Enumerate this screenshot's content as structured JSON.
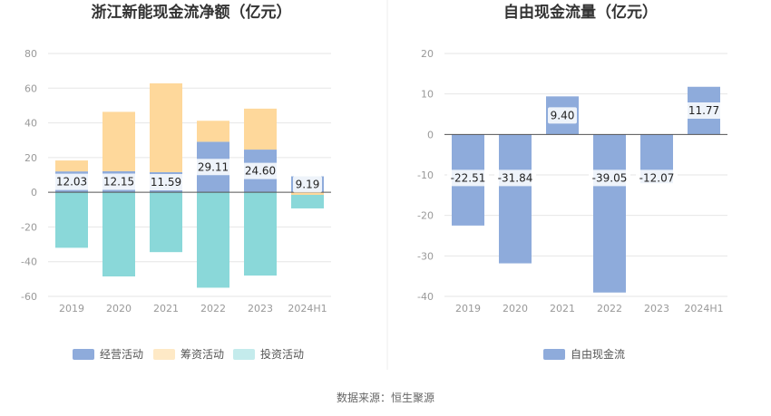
{
  "source_label": "数据来源：恒生聚源",
  "colors": {
    "operating": "#8eabdb",
    "financing": "#fed89b",
    "investing": "#8ad8d9",
    "free_cash_flow": "#8eabdb",
    "grid": "#e6e6e6",
    "axis": "#999999"
  },
  "chart_data": [
    {
      "type": "bar",
      "stacked": true,
      "title": "浙江新能现金流净额（亿元）",
      "categories": [
        "2019",
        "2020",
        "2021",
        "2022",
        "2023",
        "2024H1"
      ],
      "ylim": [
        -60,
        80
      ],
      "yticks": [
        80,
        60,
        40,
        20,
        0,
        -20,
        -40,
        -60
      ],
      "grid": true,
      "legend_position": "bottom",
      "series": [
        {
          "name": "经营活动",
          "key": "operating",
          "values": [
            12.03,
            12.15,
            11.59,
            29.11,
            24.6,
            9.19
          ],
          "labels": [
            "12.03",
            "12.15",
            "11.59",
            "29.11",
            "24.60",
            "9.19"
          ]
        },
        {
          "name": "筹资活动",
          "key": "financing",
          "values": [
            6.3,
            34.2,
            51.2,
            12.1,
            23.6,
            -1.5
          ]
        },
        {
          "name": "投资活动",
          "key": "investing",
          "values": [
            -32.0,
            -48.5,
            -34.5,
            -55.0,
            -48.0,
            -7.8
          ]
        }
      ]
    },
    {
      "type": "bar",
      "title": "自由现金流量（亿元）",
      "categories": [
        "2019",
        "2020",
        "2021",
        "2022",
        "2023",
        "2024H1"
      ],
      "ylim": [
        -40,
        20
      ],
      "yticks": [
        20,
        10,
        0,
        -10,
        -20,
        -30,
        -40
      ],
      "grid": true,
      "legend_position": "bottom",
      "series": [
        {
          "name": "自由现金流",
          "key": "free_cash_flow",
          "values": [
            -22.51,
            -31.84,
            9.4,
            -39.05,
            -12.07,
            11.77
          ],
          "labels": [
            "-22.51",
            "-31.84",
            "9.40",
            "-39.05",
            "-12.07",
            "11.77"
          ]
        }
      ]
    }
  ]
}
